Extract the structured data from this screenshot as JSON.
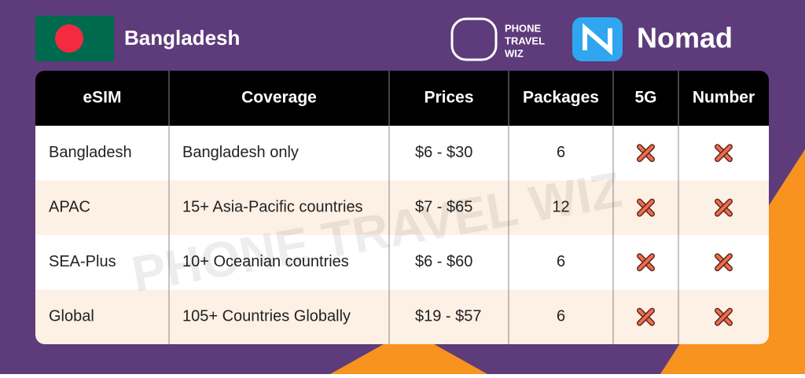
{
  "header": {
    "title": "Bangladesh",
    "logo_lines": [
      "PHONE",
      "TRAVEL",
      "WIZ"
    ],
    "brand": "Nomad"
  },
  "watermark": {
    "text": "PHONE TRAVEL WIZ"
  },
  "table": {
    "columns": [
      "eSIM",
      "Coverage",
      "Prices",
      "Packages",
      "5G",
      "Number"
    ],
    "rows": [
      [
        "Bangladesh",
        "Bangladesh only",
        "$6 - $30",
        "6"
      ],
      [
        "APAC",
        "15+ Asia-Pacific countries",
        "$7 - $65",
        "12"
      ],
      [
        "SEA-Plus",
        "10+ Oceanian countries",
        "$6 - $60",
        "6"
      ],
      [
        "Global",
        "105+ Countries Globally",
        "$19 - $57",
        "6"
      ]
    ]
  }
}
